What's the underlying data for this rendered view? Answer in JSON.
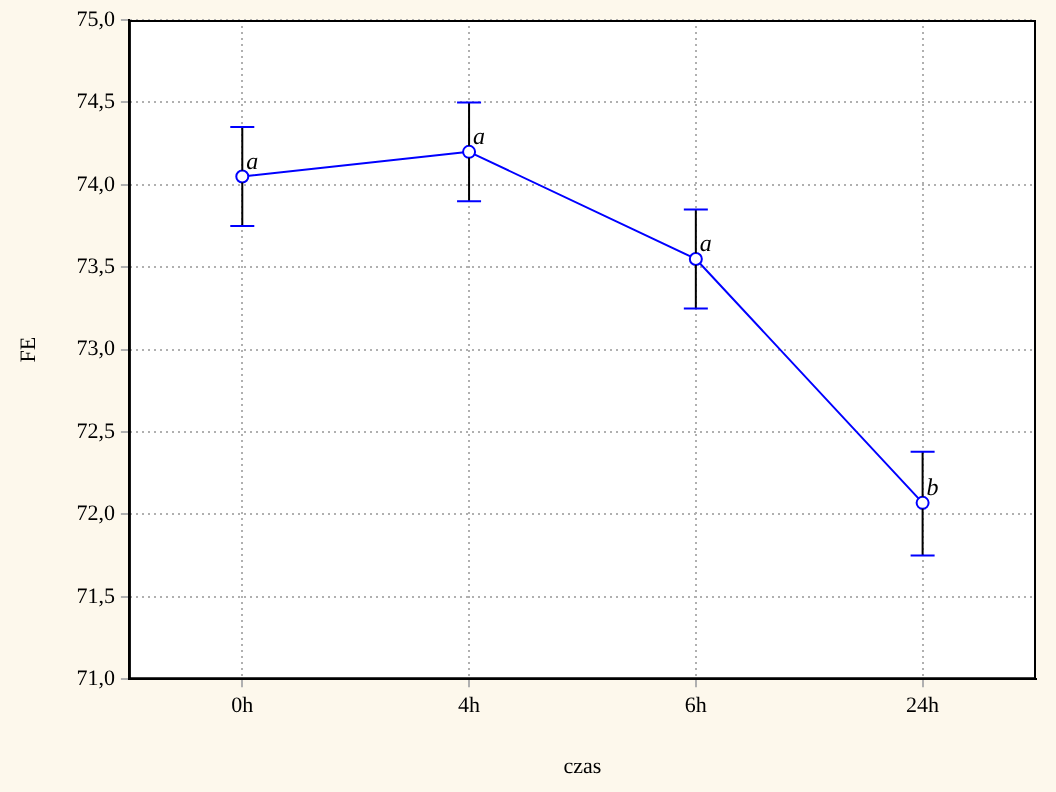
{
  "chart_data": {
    "type": "line",
    "xlabel": "czas",
    "ylabel": "FE",
    "categories": [
      "0h",
      "4h",
      "6h",
      "24h"
    ],
    "series": [
      {
        "color": "#0000ff",
        "values": [
          74.05,
          74.2,
          73.55,
          72.07
        ],
        "errors": [
          [
            73.75,
            74.35
          ],
          [
            73.9,
            74.5
          ],
          [
            73.25,
            73.85
          ],
          [
            71.75,
            72.38
          ]
        ]
      }
    ],
    "ylim": [
      71,
      75
    ],
    "yticks": [
      {
        "value": 71,
        "label": "71,0"
      },
      {
        "value": 71.5,
        "label": "71,5"
      },
      {
        "value": 72,
        "label": "72,0"
      },
      {
        "value": 72.5,
        "label": "72,5"
      },
      {
        "value": 73,
        "label": "73,0"
      },
      {
        "value": 73.5,
        "label": "73,5"
      },
      {
        "value": 74,
        "label": "74,0"
      },
      {
        "value": 74.5,
        "label": "74,5"
      },
      {
        "value": 75,
        "label": "75,0"
      }
    ],
    "annotations": [
      {
        "text": "a",
        "x": "0h",
        "y": 74.05
      },
      {
        "text": "a",
        "x": "4h",
        "y": 74.2
      },
      {
        "text": "a",
        "x": "6h",
        "y": 73.55
      },
      {
        "text": "b",
        "x": "24h",
        "y": 72.07
      }
    ],
    "grid": true,
    "legend": false,
    "marker": "circle",
    "line_style": "solid"
  }
}
